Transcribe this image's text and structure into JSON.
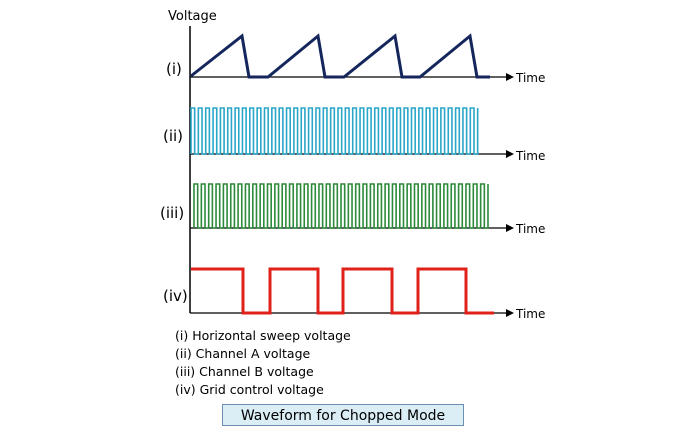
{
  "y_axis_label": "Voltage",
  "time_label": "Time",
  "panels": [
    {
      "label": "(i)",
      "color": "#14265c",
      "type": "sawtooth"
    },
    {
      "label": "(ii)",
      "color": "#2aa6c8",
      "type": "square"
    },
    {
      "label": "(iii)",
      "color": "#2d8a3a",
      "type": "square"
    },
    {
      "label": "(iv)",
      "color": "#e0211a",
      "type": "square"
    }
  ],
  "legend": [
    "(i)  Horizontal sweep voltage",
    "(ii)  Channel A voltage",
    "(iii) Channel B voltage",
    "(iv) Grid control voltage"
  ],
  "caption": "Waveform for Chopped Mode"
}
